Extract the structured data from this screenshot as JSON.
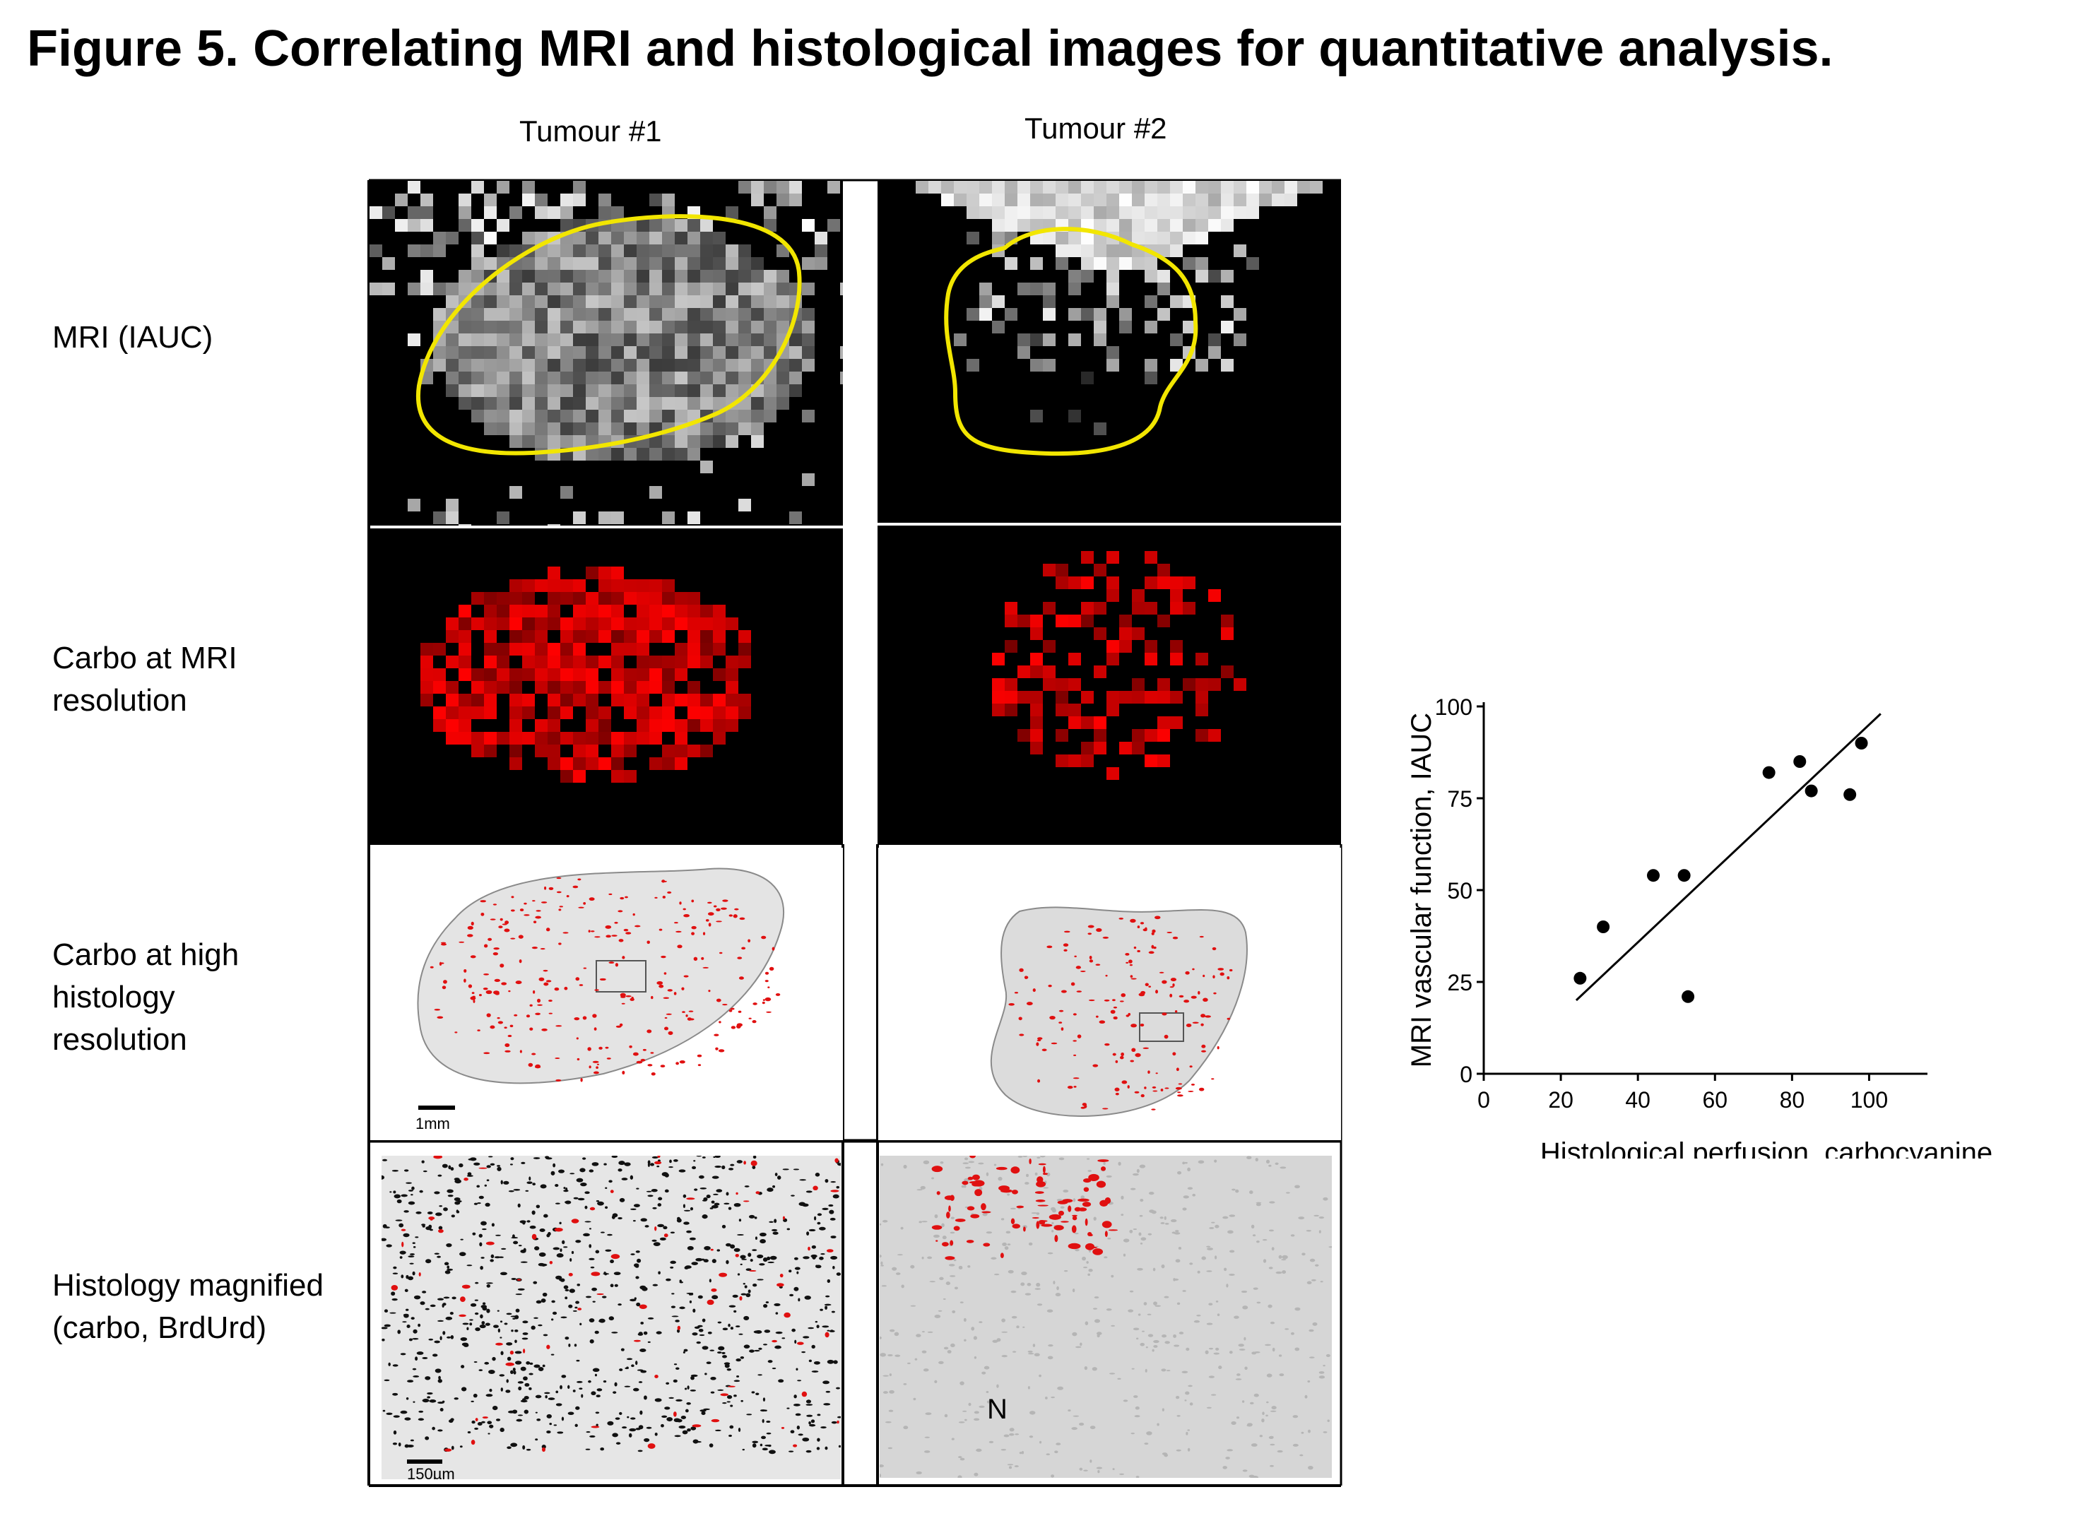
{
  "figure": {
    "title": "Figure 5. Correlating MRI and histological images for quantitative analysis."
  },
  "columns": [
    "Tumour #1",
    "Tumour #2"
  ],
  "rows": [
    {
      "label_lines": [
        "MRI (IAUC)"
      ]
    },
    {
      "label_lines": [
        "Carbo at MRI",
        "resolution"
      ]
    },
    {
      "label_lines": [
        "Carbo at high",
        "histology",
        "resolution"
      ]
    },
    {
      "label_lines": [
        "Histology magnified",
        "(carbo, BrdUrd)"
      ]
    }
  ],
  "scale_bars": {
    "histology": "1mm",
    "magnified": "150µm"
  },
  "annotations": {
    "necrosis_label": "N"
  },
  "colors": {
    "outline": "#f2e600",
    "carbo": "#e01010",
    "mri_bg": "#000000"
  },
  "chart_data": {
    "type": "scatter",
    "xlabel": "Histological perfusion, carbocyanine",
    "ylabel": "MRI vascular function, IAUC",
    "xlim": [
      0,
      110
    ],
    "ylim": [
      0,
      100
    ],
    "xticks": [
      0,
      20,
      40,
      60,
      80,
      100
    ],
    "yticks": [
      0,
      25,
      50,
      75,
      100
    ],
    "points": [
      {
        "x": 25,
        "y": 26
      },
      {
        "x": 31,
        "y": 40
      },
      {
        "x": 44,
        "y": 54
      },
      {
        "x": 52,
        "y": 54
      },
      {
        "x": 53,
        "y": 21
      },
      {
        "x": 74,
        "y": 82
      },
      {
        "x": 82,
        "y": 85
      },
      {
        "x": 85,
        "y": 77
      },
      {
        "x": 95,
        "y": 76
      },
      {
        "x": 98,
        "y": 90
      }
    ],
    "fit_line": {
      "x": [
        24,
        103
      ],
      "y": [
        20,
        98
      ]
    },
    "grid": false,
    "legend": "none"
  }
}
